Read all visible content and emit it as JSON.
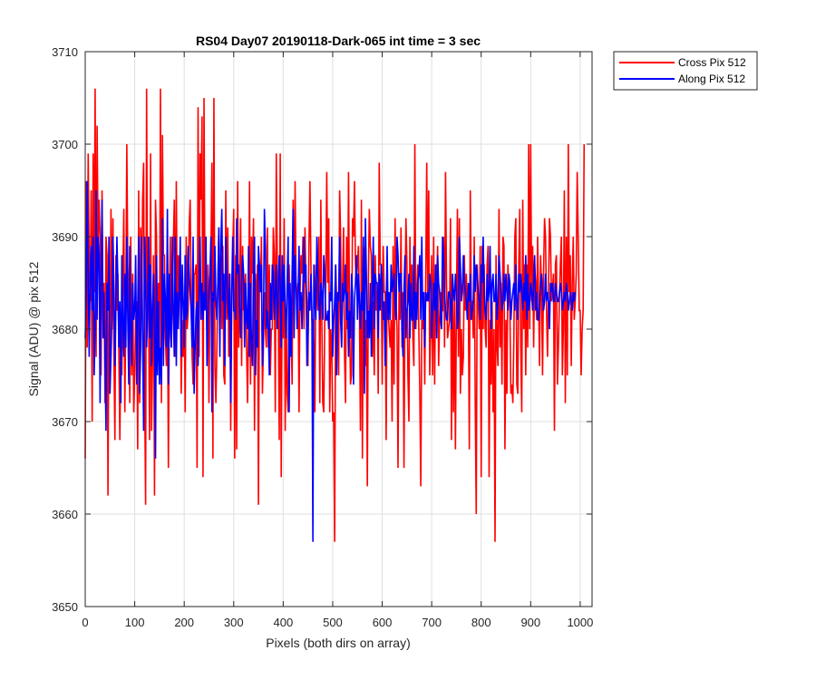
{
  "chart_data": {
    "type": "line",
    "title": "RS04 Day07 20190118-Dark-065 int time = 3 sec",
    "xlabel": "Pixels (both dirs on array)",
    "ylabel": "Signal (ADU) @ pix 512",
    "xlim": [
      0,
      1024
    ],
    "ylim": [
      3650,
      3710
    ],
    "xticks": [
      0,
      100,
      200,
      300,
      400,
      500,
      600,
      700,
      800,
      900,
      1000
    ],
    "yticks": [
      3650,
      3660,
      3670,
      3680,
      3690,
      3700,
      3710
    ],
    "grid": true,
    "legend_position": "outside top-right",
    "series": [
      {
        "name": "Cross Pix 512",
        "color": "#ff0000",
        "x_step": 2,
        "values": [
          3666,
          3696,
          3678,
          3699,
          3687,
          3683,
          3695,
          3670,
          3699,
          3684,
          3706,
          3677,
          3702,
          3689,
          3694,
          3690,
          3675,
          3695,
          3681,
          3685,
          3672,
          3690,
          3688,
          3662,
          3684,
          3676,
          3693,
          3680,
          3692,
          3677,
          3668,
          3688,
          3682,
          3686,
          3677,
          3668,
          3679,
          3675,
          3685,
          3693,
          3671,
          3682,
          3700,
          3687,
          3683,
          3672,
          3690,
          3675,
          3686,
          3671,
          3675,
          3681,
          3683,
          3667,
          3695,
          3672,
          3691,
          3682,
          3694,
          3698,
          3674,
          3661,
          3706,
          3681,
          3683,
          3668,
          3699,
          3669,
          3677,
          3688,
          3662,
          3694,
          3690,
          3676,
          3685,
          3676,
          3706,
          3672,
          3701,
          3688,
          3688,
          3679,
          3676,
          3686,
          3665,
          3683,
          3690,
          3678,
          3684,
          3689,
          3694,
          3677,
          3696,
          3680,
          3688,
          3683,
          3686,
          3673,
          3681,
          3677,
          3683,
          3671,
          3690,
          3680,
          3682,
          3691,
          3694,
          3684,
          3677,
          3674,
          3686,
          3686,
          3687,
          3665,
          3704,
          3677,
          3699,
          3694,
          3703,
          3664,
          3705,
          3683,
          3684,
          3680,
          3687,
          3672,
          3684,
          3688,
          3698,
          3666,
          3705,
          3676,
          3672,
          3678,
          3685,
          3691,
          3680,
          3688,
          3680,
          3689,
          3675,
          3674,
          3695,
          3681,
          3691,
          3677,
          3686,
          3669,
          3683,
          3688,
          3693,
          3666,
          3688,
          3667,
          3696,
          3678,
          3684,
          3692,
          3676,
          3689,
          3682,
          3684,
          3686,
          3678,
          3672,
          3681,
          3696,
          3674,
          3690,
          3686,
          3692,
          3669,
          3686,
          3681,
          3687,
          3661,
          3686,
          3684,
          3690,
          3673,
          3678,
          3684,
          3680,
          3678,
          3691,
          3678,
          3687,
          3675,
          3680,
          3680,
          3691,
          3688,
          3671,
          3699,
          3687,
          3683,
          3668,
          3699,
          3664,
          3687,
          3679,
          3692,
          3669,
          3682,
          3673,
          3671,
          3687,
          3682,
          3680,
          3674,
          3694,
          3681,
          3696,
          3685,
          3683,
          3685,
          3671,
          3684,
          3688,
          3686,
          3690,
          3680,
          3691,
          3685,
          3683,
          3676,
          3689,
          3696,
          3687,
          3681,
          3681,
          3678,
          3671,
          3687,
          3684,
          3682,
          3690,
          3672,
          3694,
          3681,
          3672,
          3671,
          3681,
          3685,
          3697,
          3685,
          3692,
          3671,
          3680,
          3678,
          3670,
          3671,
          3657,
          3687,
          3683,
          3684,
          3675,
          3695,
          3690,
          3678,
          3685,
          3691,
          3677,
          3672,
          3690,
          3680,
          3697,
          3681,
          3674,
          3675,
          3692,
          3690,
          3696,
          3687,
          3685,
          3687,
          3689,
          3682,
          3669,
          3694,
          3666,
          3689,
          3688,
          3676,
          3681,
          3663,
          3685,
          3693,
          3689,
          3688,
          3677,
          3683,
          3675,
          3688,
          3682,
          3684,
          3673,
          3698,
          3687,
          3687,
          3674,
          3689,
          3684,
          3684,
          3668,
          3686,
          3682,
          3680,
          3678,
          3681,
          3670,
          3689,
          3674,
          3692,
          3683,
          3680,
          3665,
          3684,
          3681,
          3691,
          3678,
          3684,
          3665,
          3683,
          3692,
          3687,
          3675,
          3670,
          3690,
          3683,
          3687,
          3679,
          3676,
          3700,
          3680,
          3684,
          3687,
          3680,
          3673,
          3663,
          3681,
          3680,
          3684,
          3674,
          3686,
          3698,
          3683,
          3695,
          3675,
          3680,
          3688,
          3675,
          3690,
          3674,
          3687,
          3685,
          3689,
          3676,
          3681,
          3684,
          3682,
          3682,
          3690,
          3678,
          3697,
          3685,
          3679,
          3680,
          3681,
          3692,
          3668,
          3685,
          3671,
          3683,
          3667,
          3683,
          3693,
          3677,
          3692,
          3673,
          3680,
          3675,
          3677,
          3688,
          3682,
          3686,
          3682,
          3684,
          3667,
          3695,
          3683,
          3683,
          3679,
          3690,
          3672,
          3660,
          3687,
          3683,
          3680,
          3689,
          3664,
          3689,
          3680,
          3687,
          3680,
          3678,
          3687,
          3689,
          3664,
          3681,
          3674,
          3683,
          3671,
          3680,
          3657,
          3688,
          3678,
          3676,
          3693,
          3678,
          3685,
          3674,
          3690,
          3689,
          3667,
          3681,
          3673,
          3687,
          3684,
          3682,
          3673,
          3674,
          3672,
          3679,
          3690,
          3692,
          3674,
          3673,
          3687,
          3693,
          3678,
          3671,
          3694,
          3680,
          3687,
          3675,
          3687,
          3678,
          3700,
          3680,
          3700,
          3683,
          3689,
          3678,
          3687,
          3685,
          3681,
          3690,
          3683,
          3676,
          3688,
          3684,
          3675,
          3686,
          3692,
          3690,
          3682,
          3677,
          3684,
          3692,
          3690,
          3683,
          3684,
          3686,
          3669,
          3687,
          3688,
          3674,
          3678,
          3683,
          3687,
          3690,
          3675,
          3680,
          3695,
          3672,
          3690,
          3675,
          3700,
          3684,
          3688,
          3676,
          3685,
          3690,
          3681,
          3683,
          3686,
          3697,
          3690,
          3682,
          3682,
          3675,
          3680,
          3682,
          3700
        ]
      },
      {
        "name": "Along Pix 512",
        "color": "#0000ff",
        "x_step": 2,
        "values": [
          3679,
          3684,
          3696,
          3686,
          3677,
          3686,
          3689,
          3682,
          3690,
          3675,
          3680,
          3695,
          3681,
          3690,
          3688,
          3672,
          3686,
          3694,
          3679,
          3684,
          3677,
          3669,
          3685,
          3682,
          3690,
          3673,
          3677,
          3681,
          3690,
          3684,
          3676,
          3683,
          3690,
          3685,
          3678,
          3683,
          3672,
          3688,
          3681,
          3677,
          3686,
          3678,
          3690,
          3681,
          3674,
          3689,
          3680,
          3676,
          3685,
          3681,
          3682,
          3688,
          3674,
          3682,
          3690,
          3673,
          3678,
          3690,
          3679,
          3669,
          3690,
          3685,
          3678,
          3682,
          3690,
          3679,
          3687,
          3676,
          3682,
          3686,
          3680,
          3666,
          3688,
          3675,
          3683,
          3674,
          3678,
          3674,
          3692,
          3676,
          3686,
          3683,
          3678,
          3693,
          3674,
          3686,
          3680,
          3678,
          3690,
          3682,
          3677,
          3690,
          3676,
          3684,
          3680,
          3684,
          3690,
          3677,
          3687,
          3683,
          3678,
          3688,
          3681,
          3682,
          3689,
          3686,
          3684,
          3682,
          3678,
          3690,
          3673,
          3678,
          3682,
          3683,
          3676,
          3684,
          3690,
          3681,
          3685,
          3681,
          3684,
          3682,
          3690,
          3676,
          3681,
          3684,
          3686,
          3690,
          3671,
          3684,
          3683,
          3689,
          3683,
          3681,
          3685,
          3691,
          3677,
          3689,
          3693,
          3683,
          3686,
          3676,
          3690,
          3686,
          3683,
          3681,
          3686,
          3672,
          3684,
          3690,
          3682,
          3682,
          3681,
          3692,
          3686,
          3687,
          3682,
          3679,
          3685,
          3688,
          3686,
          3678,
          3685,
          3681,
          3680,
          3689,
          3677,
          3685,
          3678,
          3676,
          3687,
          3690,
          3675,
          3681,
          3678,
          3689,
          3687,
          3684,
          3687,
          3676,
          3680,
          3693,
          3689,
          3680,
          3682,
          3680,
          3675,
          3685,
          3681,
          3687,
          3686,
          3681,
          3684,
          3687,
          3680,
          3683,
          3688,
          3685,
          3678,
          3688,
          3683,
          3687,
          3682,
          3679,
          3685,
          3690,
          3671,
          3685,
          3677,
          3686,
          3693,
          3679,
          3688,
          3685,
          3680,
          3683,
          3689,
          3682,
          3684,
          3680,
          3685,
          3690,
          3685,
          3687,
          3676,
          3679,
          3684,
          3682,
          3686,
          3682,
          3657,
          3687,
          3683,
          3681,
          3690,
          3686,
          3683,
          3681,
          3685,
          3684,
          3681,
          3688,
          3686,
          3681,
          3681,
          3682,
          3680,
          3684,
          3683,
          3690,
          3677,
          3681,
          3683,
          3687,
          3675,
          3684,
          3683,
          3690,
          3681,
          3678,
          3685,
          3683,
          3684,
          3687,
          3681,
          3684,
          3677,
          3682,
          3679,
          3686,
          3684,
          3674,
          3683,
          3685,
          3688,
          3681,
          3686,
          3683,
          3680,
          3684,
          3682,
          3690,
          3673,
          3692,
          3686,
          3679,
          3682,
          3679,
          3685,
          3677,
          3683,
          3690,
          3680,
          3686,
          3685,
          3685,
          3679,
          3686,
          3682,
          3687,
          3685,
          3681,
          3683,
          3676,
          3682,
          3689,
          3681,
          3684,
          3681,
          3687,
          3684,
          3685,
          3686,
          3683,
          3681,
          3690,
          3688,
          3684,
          3686,
          3686,
          3680,
          3677,
          3684,
          3688,
          3679,
          3682,
          3683,
          3686,
          3679,
          3685,
          3681,
          3681,
          3689,
          3680,
          3684,
          3681,
          3685,
          3686,
          3688,
          3681,
          3690,
          3681,
          3684,
          3678,
          3684,
          3683,
          3684,
          3683,
          3686,
          3685,
          3679,
          3682,
          3685,
          3682,
          3687,
          3679,
          3688,
          3685,
          3684,
          3681,
          3680,
          3690,
          3688,
          3684,
          3682,
          3681,
          3681,
          3684,
          3684,
          3683,
          3680,
          3686,
          3684,
          3683,
          3686,
          3684,
          3680,
          3681,
          3690,
          3687,
          3683,
          3684,
          3688,
          3685,
          3684,
          3683,
          3681,
          3685,
          3683,
          3686,
          3681,
          3682,
          3683,
          3688,
          3684,
          3687,
          3686,
          3684,
          3683,
          3681,
          3687,
          3685,
          3690,
          3684,
          3682,
          3681,
          3686,
          3683,
          3684,
          3689,
          3680,
          3685,
          3686,
          3683,
          3683,
          3686,
          3681,
          3683,
          3688,
          3686,
          3684,
          3682,
          3683,
          3686,
          3683,
          3686,
          3684,
          3682,
          3686,
          3685,
          3681,
          3683,
          3684,
          3685,
          3682,
          3687,
          3683,
          3681,
          3686,
          3684,
          3686,
          3684,
          3682,
          3685,
          3683,
          3688,
          3681,
          3686,
          3682,
          3683,
          3685,
          3684,
          3682,
          3685,
          3688,
          3682,
          3684,
          3681,
          3681,
          3683,
          3685,
          3686,
          3684,
          3682,
          3683,
          3686,
          3683,
          3684,
          3683,
          3680,
          3685,
          3684,
          3685,
          3683,
          3683,
          3685,
          3684,
          3683,
          3683,
          3684,
          3685,
          3684,
          3682,
          3683,
          3684,
          3683,
          3685,
          3684,
          3682,
          3683,
          3684,
          3683,
          3682,
          3684,
          3683,
          3684
        ]
      }
    ]
  }
}
